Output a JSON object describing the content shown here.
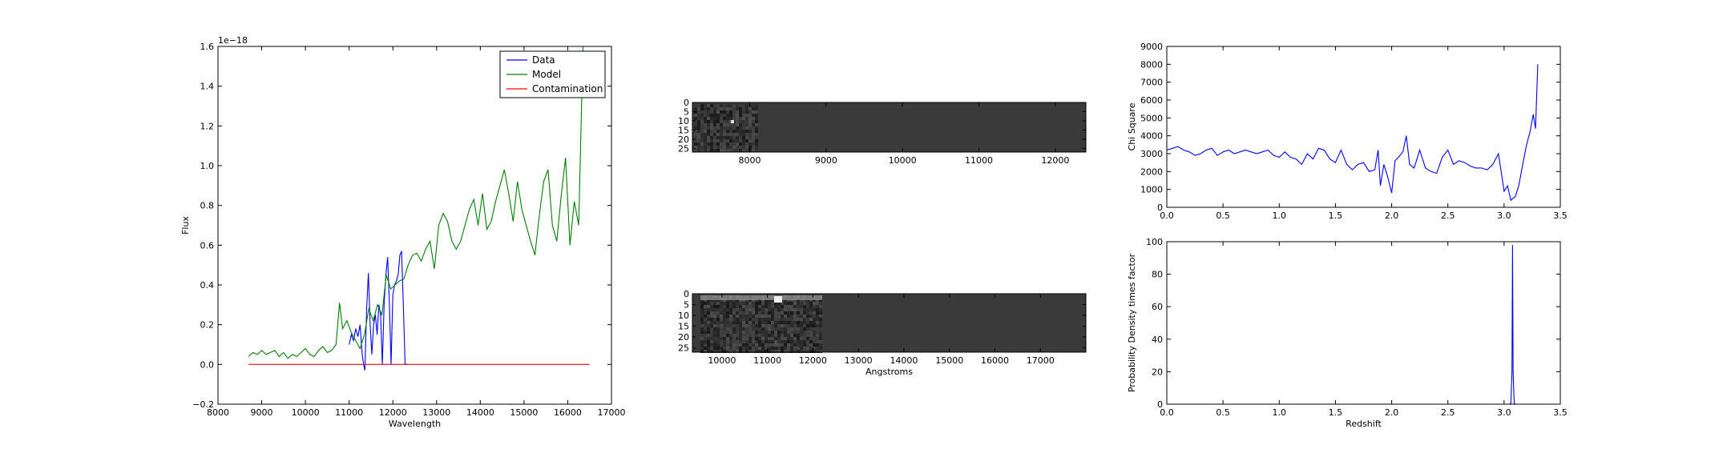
{
  "chart_data": [
    {
      "id": "spectrum",
      "type": "line",
      "xlabel": "Wavelength",
      "ylabel": "Flux",
      "offset_text": "1e−18",
      "xlim": [
        8000,
        17000
      ],
      "ylim": [
        -0.2,
        1.6
      ],
      "xticks": [
        8000,
        9000,
        10000,
        11000,
        12000,
        13000,
        14000,
        15000,
        16000,
        17000
      ],
      "yticks": [
        -0.2,
        0.0,
        0.2,
        0.4,
        0.6,
        0.8,
        1.0,
        1.2,
        1.4,
        1.6
      ],
      "ytick_labels": [
        "−0.2",
        "0.0",
        "0.2",
        "0.4",
        "0.6",
        "0.8",
        "1.0",
        "1.2",
        "1.4",
        "1.6"
      ],
      "legend_position": "top-right",
      "series": [
        {
          "name": "Data",
          "color": "#0000ff",
          "x": [
            11000,
            11050,
            11100,
            11150,
            11200,
            11250,
            11300,
            11330,
            11360,
            11400,
            11440,
            11480,
            11520,
            11560,
            11600,
            11640,
            11680,
            11720,
            11760,
            11800,
            11840,
            11880,
            11920,
            11960,
            12000,
            12040,
            12080,
            12120,
            12160,
            12200,
            12240,
            12280,
            12320,
            12340
          ],
          "y": [
            0.1,
            0.15,
            0.12,
            0.18,
            0.14,
            0.2,
            0.05,
            0.0,
            -0.03,
            0.28,
            0.46,
            0.2,
            0.05,
            0.2,
            0.25,
            0.15,
            0.3,
            0.25,
            0.0,
            0.3,
            0.45,
            0.54,
            0.3,
            0.0,
            0.35,
            0.4,
            0.42,
            0.45,
            0.55,
            0.57,
            0.3,
            0.0,
            0.0,
            0.0
          ]
        },
        {
          "name": "Model",
          "color": "#008000",
          "x": [
            8700,
            8800,
            8900,
            9000,
            9100,
            9200,
            9300,
            9400,
            9500,
            9600,
            9700,
            9800,
            9900,
            10000,
            10100,
            10200,
            10300,
            10400,
            10500,
            10600,
            10700,
            10780,
            10850,
            10950,
            11050,
            11150,
            11250,
            11350,
            11450,
            11550,
            11650,
            11750,
            11850,
            11950,
            12050,
            12150,
            12250,
            12350,
            12450,
            12550,
            12650,
            12750,
            12850,
            12950,
            13050,
            13150,
            13250,
            13350,
            13450,
            13550,
            13650,
            13750,
            13850,
            13950,
            14050,
            14150,
            14250,
            14350,
            14450,
            14550,
            14650,
            14750,
            14850,
            14950,
            15050,
            15150,
            15250,
            15350,
            15450,
            15550,
            15650,
            15750,
            15850,
            15950,
            16050,
            16150,
            16250,
            16350
          ],
          "y": [
            0.04,
            0.06,
            0.05,
            0.07,
            0.05,
            0.06,
            0.07,
            0.04,
            0.06,
            0.03,
            0.05,
            0.04,
            0.06,
            0.08,
            0.05,
            0.04,
            0.07,
            0.09,
            0.06,
            0.07,
            0.1,
            0.31,
            0.18,
            0.22,
            0.16,
            0.12,
            0.08,
            0.15,
            0.28,
            0.22,
            0.3,
            0.25,
            0.45,
            0.38,
            0.4,
            0.42,
            0.43,
            0.5,
            0.55,
            0.56,
            0.52,
            0.58,
            0.62,
            0.48,
            0.7,
            0.76,
            0.72,
            0.62,
            0.58,
            0.62,
            0.7,
            0.78,
            0.83,
            0.7,
            0.86,
            0.68,
            0.72,
            0.82,
            0.9,
            0.98,
            0.86,
            0.72,
            0.92,
            0.78,
            0.7,
            0.62,
            0.55,
            0.75,
            0.92,
            0.98,
            0.7,
            0.62,
            0.85,
            1.04,
            0.6,
            0.82,
            0.7,
            1.6
          ]
        },
        {
          "name": "Contamination",
          "color": "#ff0000",
          "x": [
            8700,
            16500
          ],
          "y": [
            0.0,
            0.0
          ]
        }
      ]
    },
    {
      "id": "image-top",
      "type": "heatmap",
      "xlim": [
        7250,
        12400
      ],
      "ylim": [
        27,
        0
      ],
      "xticks": [
        8000,
        9000,
        10000,
        11000,
        12000
      ],
      "yticks": [
        0,
        5,
        10,
        15,
        20,
        25
      ],
      "xlabel": ""
    },
    {
      "id": "image-bottom",
      "type": "heatmap",
      "xlim": [
        9350,
        18000
      ],
      "ylim": [
        27,
        0
      ],
      "xticks": [
        10000,
        11000,
        12000,
        13000,
        14000,
        15000,
        16000,
        17000
      ],
      "yticks": [
        0,
        5,
        10,
        15,
        20,
        25
      ],
      "xlabel": "Angstroms"
    },
    {
      "id": "chisq",
      "type": "line",
      "xlabel": "",
      "ylabel": "Chi Square",
      "xlim": [
        0.0,
        3.5
      ],
      "ylim": [
        0,
        9000
      ],
      "xticks": [
        0.0,
        0.5,
        1.0,
        1.5,
        2.0,
        2.5,
        3.0,
        3.5
      ],
      "yticks": [
        0,
        1000,
        2000,
        3000,
        4000,
        5000,
        6000,
        7000,
        8000,
        9000
      ],
      "series": [
        {
          "color": "#0000ff",
          "x": [
            0.0,
            0.05,
            0.1,
            0.15,
            0.2,
            0.25,
            0.3,
            0.35,
            0.4,
            0.45,
            0.5,
            0.55,
            0.6,
            0.65,
            0.7,
            0.75,
            0.8,
            0.85,
            0.9,
            0.95,
            1.0,
            1.05,
            1.1,
            1.15,
            1.2,
            1.25,
            1.3,
            1.35,
            1.4,
            1.45,
            1.5,
            1.55,
            1.6,
            1.65,
            1.7,
            1.75,
            1.8,
            1.85,
            1.88,
            1.9,
            1.93,
            1.96,
            2.0,
            2.03,
            2.06,
            2.1,
            2.13,
            2.16,
            2.2,
            2.25,
            2.3,
            2.35,
            2.4,
            2.45,
            2.5,
            2.55,
            2.6,
            2.65,
            2.7,
            2.75,
            2.8,
            2.85,
            2.9,
            2.95,
            3.0,
            3.03,
            3.06,
            3.1,
            3.13,
            3.16,
            3.2,
            3.23,
            3.26,
            3.28,
            3.3
          ],
          "y": [
            3200,
            3300,
            3400,
            3200,
            3100,
            2900,
            3000,
            3200,
            3300,
            2900,
            3100,
            3200,
            3000,
            3100,
            3200,
            3100,
            3000,
            3100,
            3200,
            2900,
            2800,
            3100,
            2800,
            2700,
            2400,
            3000,
            2700,
            3300,
            3200,
            2700,
            2500,
            3200,
            2400,
            2100,
            2400,
            2500,
            2000,
            2100,
            3200,
            1200,
            2400,
            1800,
            800,
            2600,
            2800,
            3100,
            4000,
            2400,
            2200,
            3200,
            2200,
            2000,
            1900,
            2800,
            3200,
            2400,
            2600,
            2500,
            2300,
            2200,
            2200,
            2100,
            2400,
            3000,
            900,
            1200,
            400,
            600,
            1200,
            2200,
            3500,
            4200,
            5200,
            4400,
            8000
          ]
        }
      ]
    },
    {
      "id": "pdf",
      "type": "line",
      "xlabel": "Redshift",
      "ylabel": "Probability Density times factor",
      "xlim": [
        0.0,
        3.5
      ],
      "ylim": [
        0,
        100
      ],
      "xticks": [
        0.0,
        0.5,
        1.0,
        1.5,
        2.0,
        2.5,
        3.0,
        3.5
      ],
      "yticks": [
        0,
        20,
        40,
        60,
        80,
        100
      ],
      "series": [
        {
          "color": "#0000ff",
          "x": [
            0.0,
            3.05,
            3.06,
            3.07,
            3.075,
            3.08,
            3.09,
            3.1,
            3.3
          ],
          "y": [
            0,
            0,
            0.5,
            20,
            98,
            20,
            0.5,
            0,
            0
          ]
        }
      ]
    }
  ]
}
